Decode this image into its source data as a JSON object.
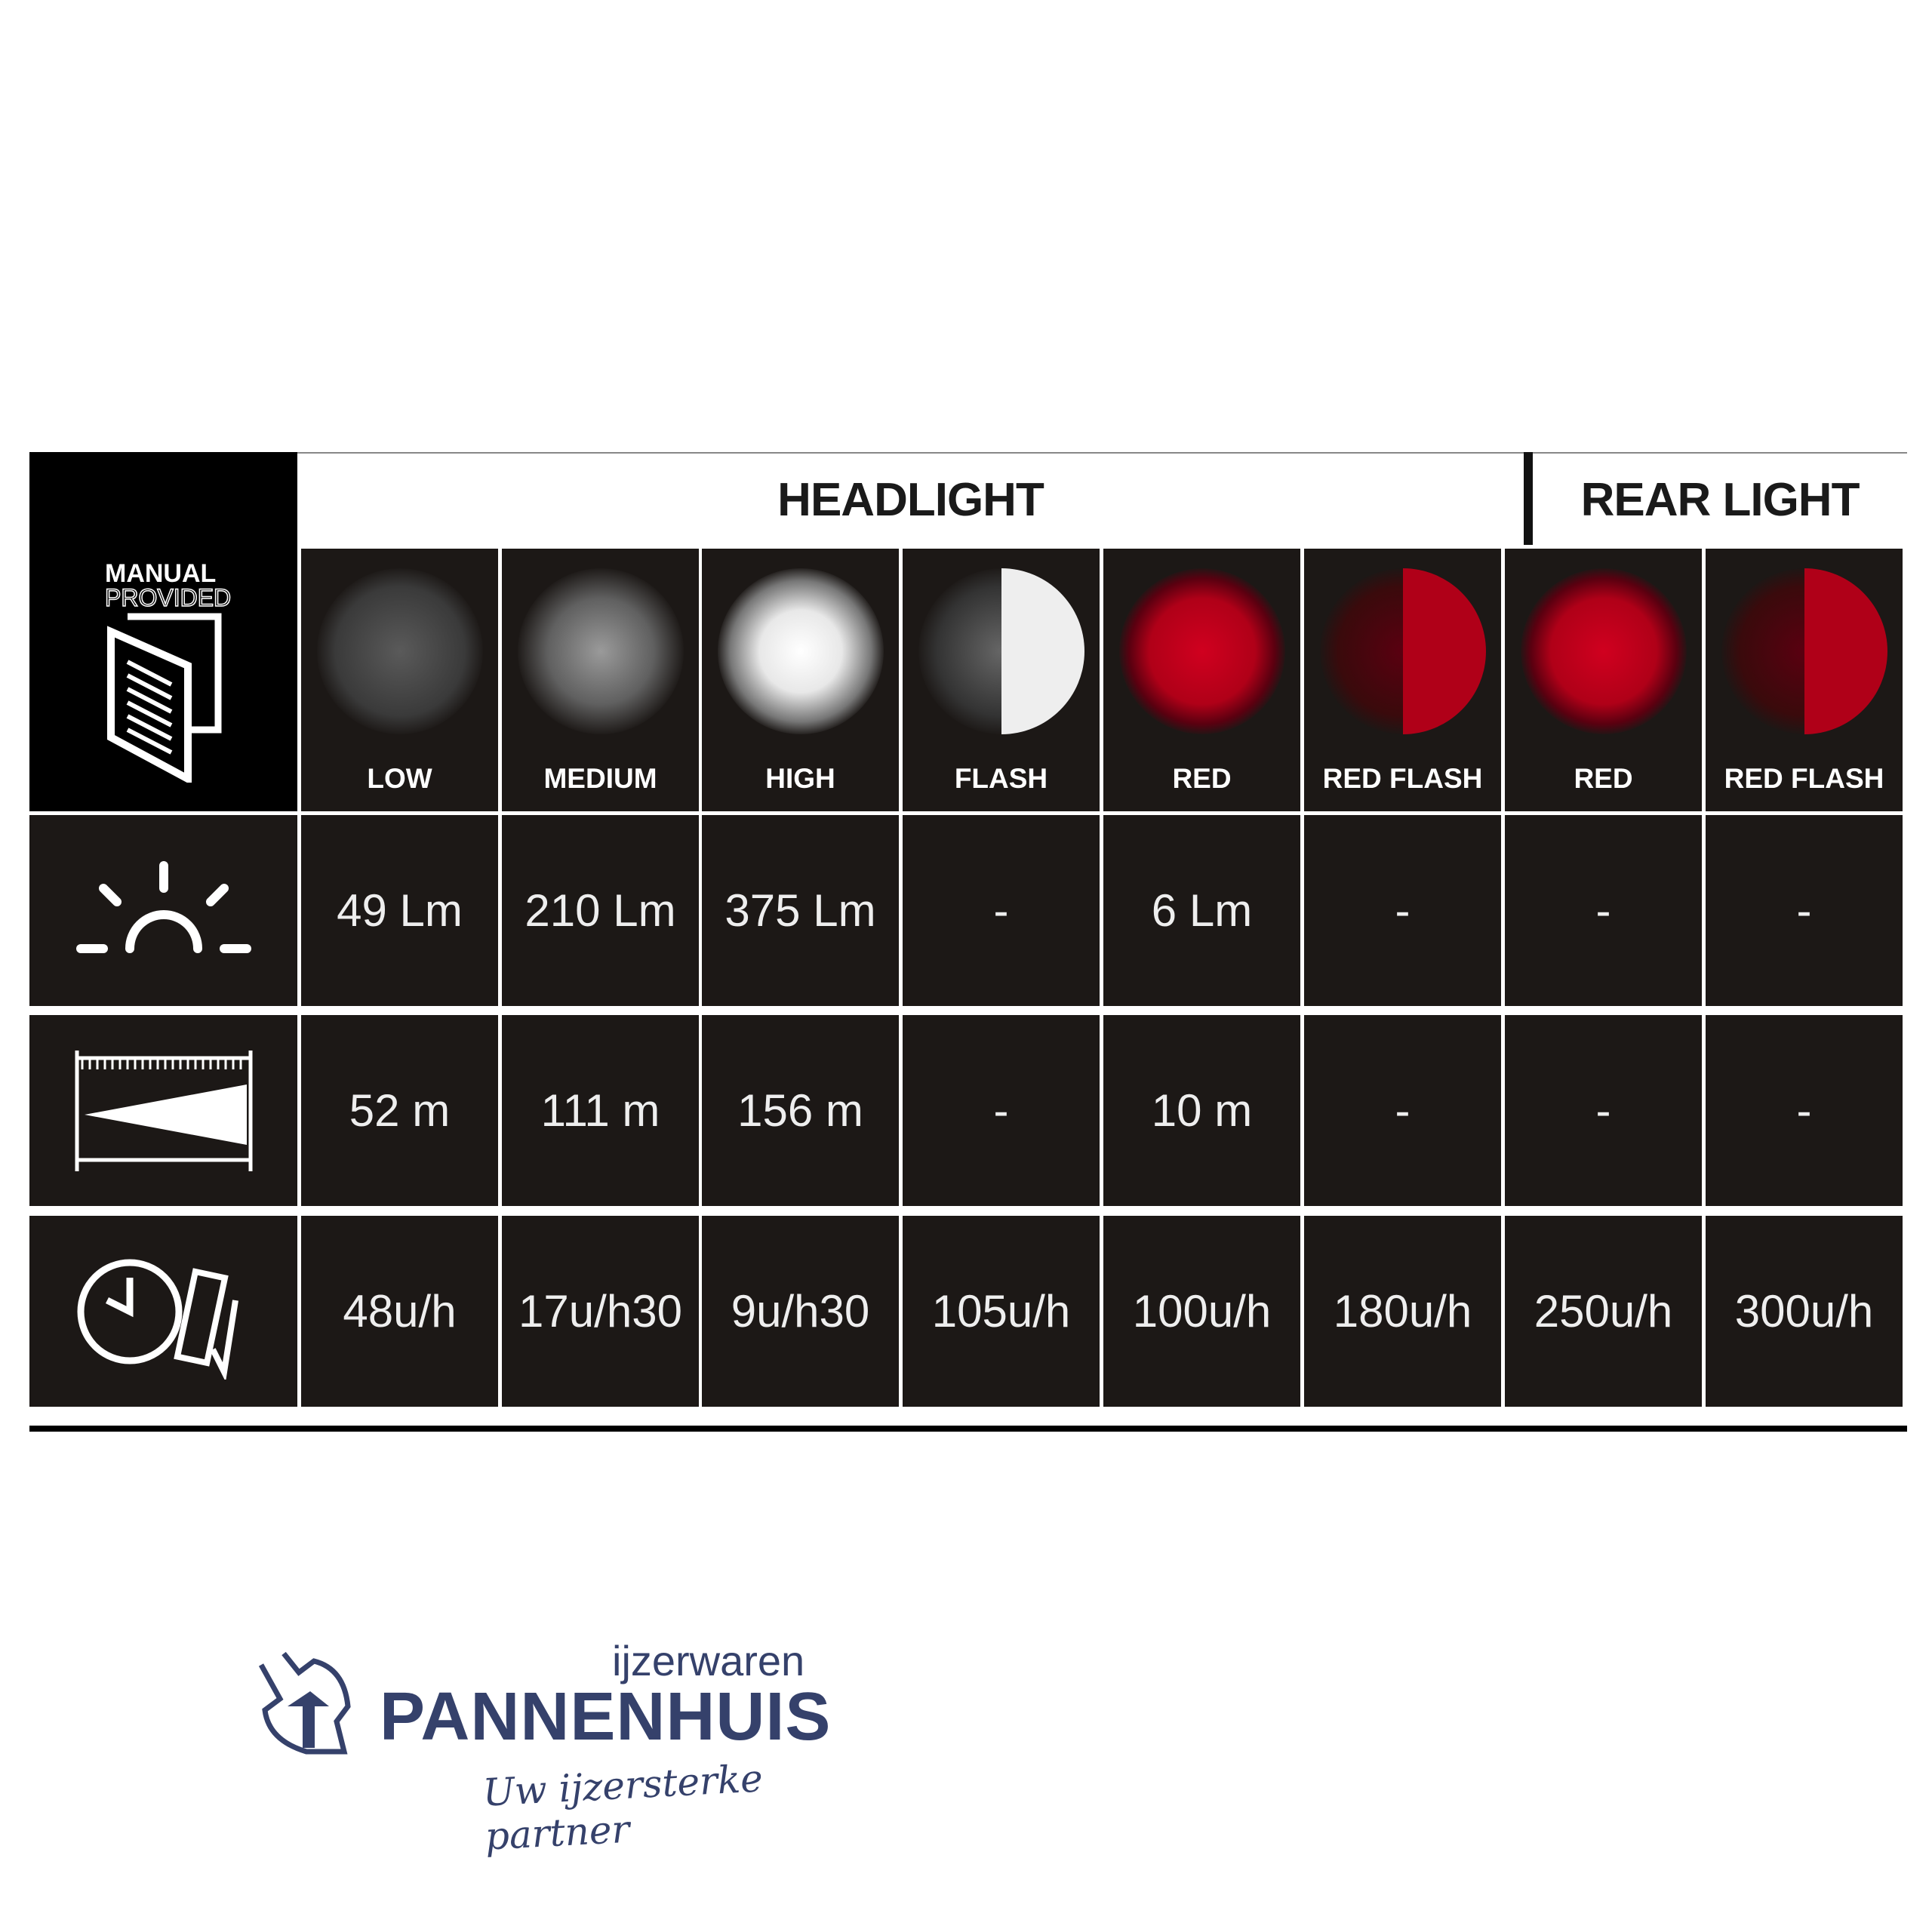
{
  "header": {
    "headlight": "HEADLIGHT",
    "rear_light": "REAR LIGHT"
  },
  "manual_badge": {
    "line1": "MANUAL",
    "line2": "PROVIDED"
  },
  "modes": [
    {
      "label": "LOW",
      "group": "headlight",
      "lamp": "white-low"
    },
    {
      "label": "MEDIUM",
      "group": "headlight",
      "lamp": "white-medium"
    },
    {
      "label": "HIGH",
      "group": "headlight",
      "lamp": "white-high"
    },
    {
      "label": "FLASH",
      "group": "headlight",
      "lamp": "white-flash"
    },
    {
      "label": "RED",
      "group": "headlight",
      "lamp": "red"
    },
    {
      "label": "RED FLASH",
      "group": "headlight",
      "lamp": "red-flash"
    },
    {
      "label": "RED",
      "group": "rear",
      "lamp": "red"
    },
    {
      "label": "RED FLASH",
      "group": "rear",
      "lamp": "red-flash"
    }
  ],
  "rows": [
    {
      "icon": "lumens-sun-icon",
      "values": [
        "49 Lm",
        "210 Lm",
        "375 Lm",
        "-",
        "6 Lm",
        "-",
        "-",
        "-"
      ]
    },
    {
      "icon": "beam-distance-icon",
      "values": [
        "52 m",
        "111 m",
        "156 m",
        "-",
        "10 m",
        "-",
        "-",
        "-"
      ]
    },
    {
      "icon": "runtime-clock-battery-icon",
      "values": [
        "48u/h",
        "17u/h30",
        "9u/h30",
        "105u/h",
        "100u/h",
        "180u/h",
        "250u/h",
        "300u/h"
      ]
    }
  ],
  "colors": {
    "cell_bg": "#1c1816",
    "red_lamp": "#c8001e",
    "logo_blue": "#35416b"
  },
  "logo": {
    "top": "ijzerwaren",
    "name": "PANNENHUIS",
    "tagline": "Uw ijzersterke partner"
  }
}
